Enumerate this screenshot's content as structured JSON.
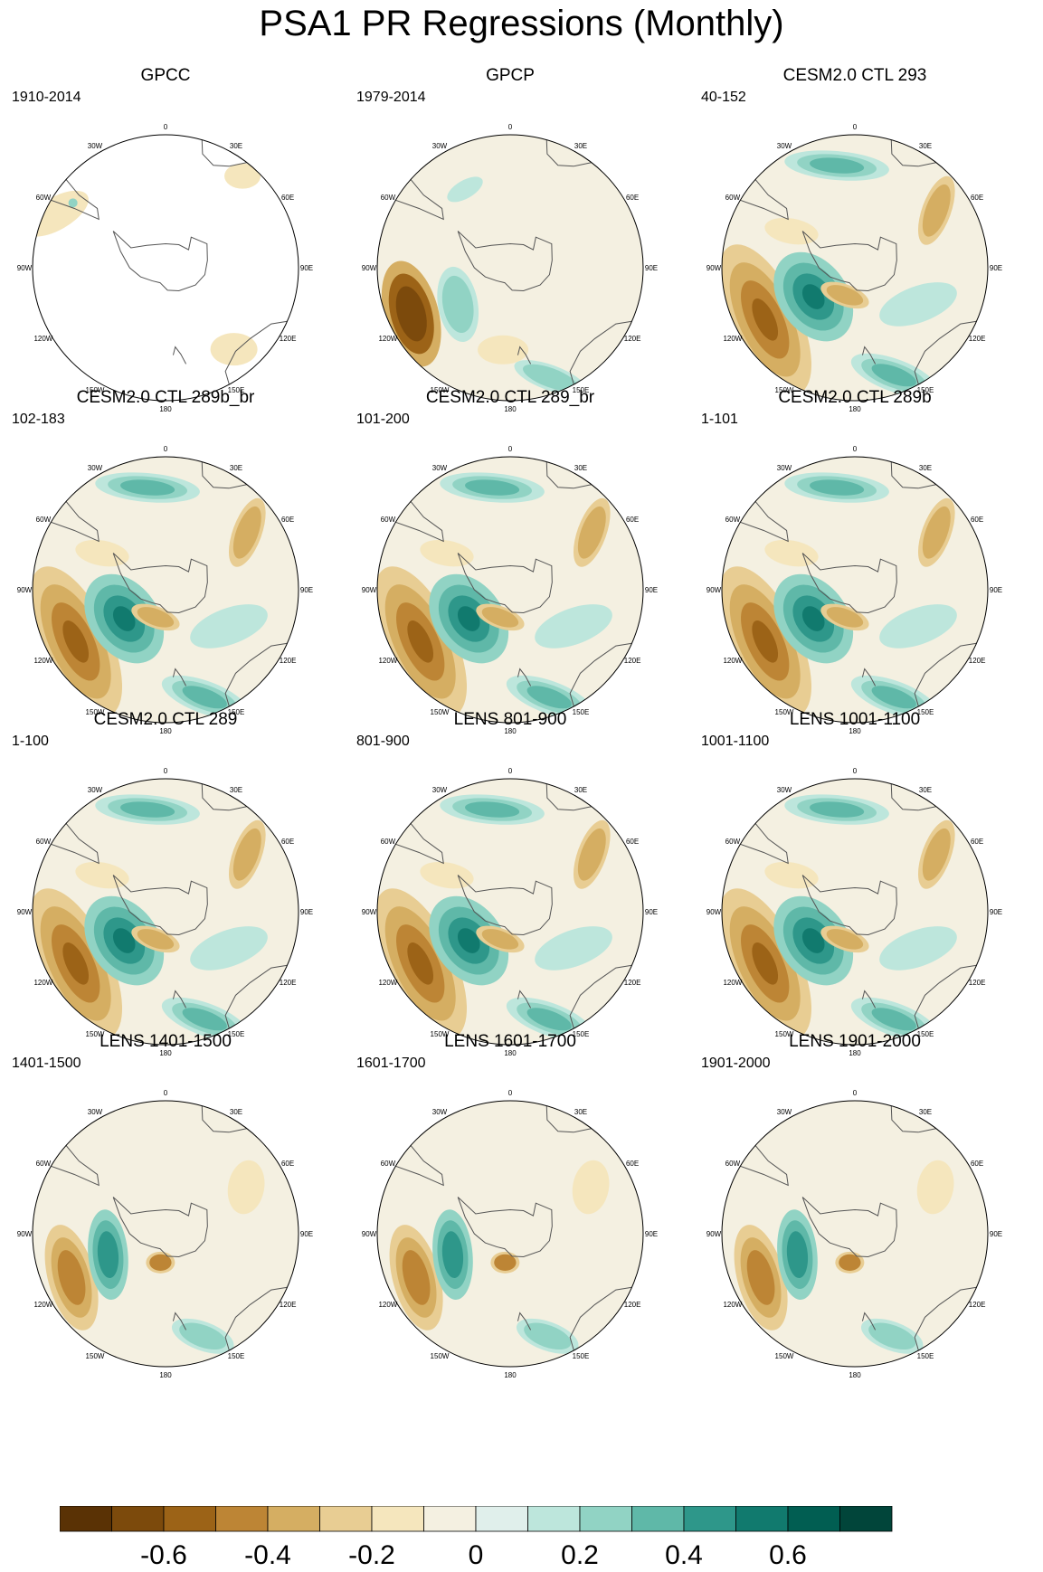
{
  "title": "PSA1 PR Regressions (Monthly)",
  "lon_labels": [
    "0",
    "30E",
    "60E",
    "90E",
    "120E",
    "150E",
    "180",
    "150W",
    "120W",
    "90W",
    "60W",
    "30W"
  ],
  "panels": [
    {
      "title": "GPCC",
      "years": "1910-2014",
      "pattern": "sparse"
    },
    {
      "title": "GPCP",
      "years": "1979-2014",
      "pattern": "obs"
    },
    {
      "title": "CESM2.0 CTL 293",
      "years": "40-152",
      "pattern": "model"
    },
    {
      "title": "CESM2.0 CTL 289b_br",
      "years": "102-183",
      "pattern": "model"
    },
    {
      "title": "CESM2.0 CTL 289_br",
      "years": "101-200",
      "pattern": "model"
    },
    {
      "title": "CESM2.0 CTL 289b",
      "years": "1-101",
      "pattern": "model"
    },
    {
      "title": "CESM2.0 CTL 289",
      "years": "1-100",
      "pattern": "model"
    },
    {
      "title": "LENS 801-900",
      "years": "801-900",
      "pattern": "model"
    },
    {
      "title": "LENS 1001-1100",
      "years": "1001-1100",
      "pattern": "model"
    },
    {
      "title": "LENS 1401-1500",
      "years": "1401-1500",
      "pattern": "lens"
    },
    {
      "title": "LENS 1601-1700",
      "years": "1601-1700",
      "pattern": "lens"
    },
    {
      "title": "LENS 1901-2000",
      "years": "1901-2000",
      "pattern": "lens"
    }
  ],
  "colorbar": {
    "colors": [
      "#5a3205",
      "#7c4a0c",
      "#9c6317",
      "#bd8535",
      "#d5ae62",
      "#e8cd93",
      "#f5e6bd",
      "#f4f0e1",
      "#e0efeb",
      "#bde6dc",
      "#91d3c4",
      "#5fb8a8",
      "#2e978a",
      "#117a6e",
      "#015e52",
      "#01453a"
    ],
    "tick_labels": [
      "-0.6",
      "-0.4",
      "-0.2",
      "0",
      "0.2",
      "0.4",
      "0.6"
    ]
  }
}
